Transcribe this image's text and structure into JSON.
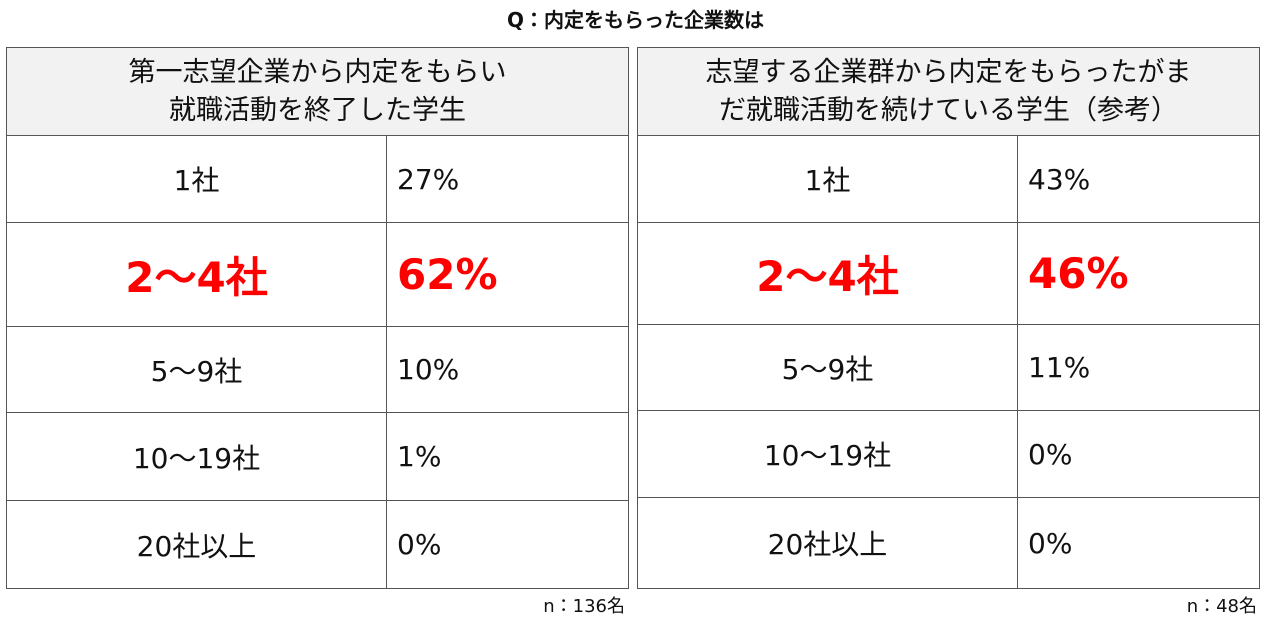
{
  "title": "Q：内定をもらった企業数は",
  "highlight_row": 1,
  "tables": [
    {
      "header": [
        "第一志望企業から内定をもらい",
        "就職活動を終了した学生"
      ],
      "rows": [
        [
          "1社",
          "27%"
        ],
        [
          "2～4社",
          "62%"
        ],
        [
          "5～9社",
          "10%"
        ],
        [
          "10～19社",
          "1%"
        ],
        [
          "20社以上",
          "0%"
        ]
      ],
      "note": "n：136名"
    },
    {
      "header": [
        "志望する企業群から内定をもらったがま",
        "だ就職活動を続けている学生（参考）"
      ],
      "rows": [
        [
          "1社",
          "43%"
        ],
        [
          "2～4社",
          "46%"
        ],
        [
          "5～9社",
          "11%"
        ],
        [
          "10～19社",
          "0%"
        ],
        [
          "20社以上",
          "0%"
        ]
      ],
      "note": "n：48名"
    }
  ]
}
